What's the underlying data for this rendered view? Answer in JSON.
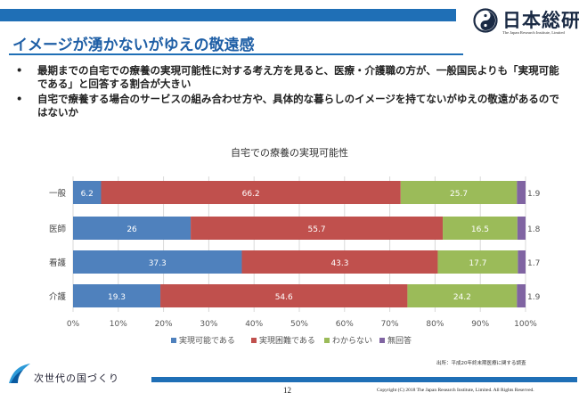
{
  "brand": {
    "name": "日本総研",
    "subtitle": "The Japan Research Institute, Limited",
    "accent_color": "#1f6fb6"
  },
  "title": "イメージが湧かないがゆえの敬遠感",
  "bullets": [
    {
      "marker": "•",
      "text": "最期までの自宅での療養の実現可能性に対する考え方を見ると、医療・介護職の方が、一般国民よりも「実現可能である」と回答する割合が大きい"
    },
    {
      "marker": "•",
      "text": "自宅で療養する場合のサービスの組み合わせ方や、具体的な暮らしのイメージを持てないがゆえの敬遠があるのではないか"
    }
  ],
  "chart_data": {
    "type": "bar",
    "orientation": "horizontal",
    "stacked": true,
    "title": "自宅での療養の実現可能性",
    "categories": [
      "一般",
      "医師",
      "看護",
      "介護"
    ],
    "series": [
      {
        "name": "実現可能である",
        "color": "#4f81bd",
        "values": [
          6.2,
          26,
          37.3,
          19.3
        ]
      },
      {
        "name": "実現困難である",
        "color": "#c0504d",
        "values": [
          66.2,
          55.7,
          43.3,
          54.6
        ]
      },
      {
        "name": "わからない",
        "color": "#9bbb59",
        "values": [
          25.7,
          16.5,
          17.7,
          24.2
        ]
      },
      {
        "name": "無回答",
        "color": "#8064a2",
        "values": [
          1.9,
          1.8,
          1.7,
          1.9
        ]
      }
    ],
    "xlim": [
      0,
      100
    ],
    "xticks": [
      "0%",
      "10%",
      "20%",
      "30%",
      "40%",
      "50%",
      "60%",
      "70%",
      "80%",
      "90%",
      "100%"
    ],
    "grid": true,
    "legend_position": "bottom"
  },
  "source_note": "出所：平成20年終末期医療に関する調査",
  "footer": {
    "tagline": "次世代の国づくり",
    "page": "12",
    "copyright": "Copyright (C) 2018 The Japan Research Institute, Limited. All Rights Reserved."
  }
}
